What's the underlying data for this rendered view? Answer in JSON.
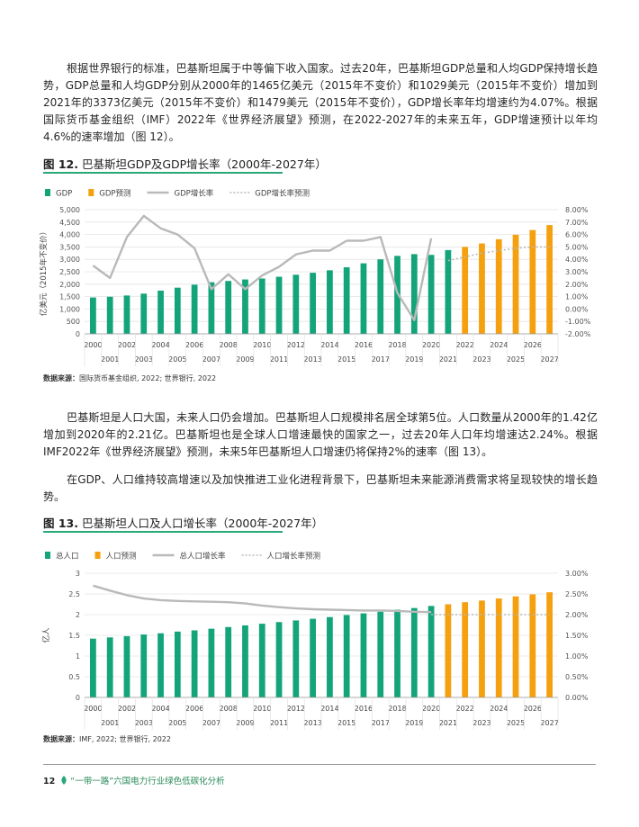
{
  "paragraphs": {
    "p1": "根据世界银行的标准，巴基斯坦属于中等偏下收入国家。过去20年，巴基斯坦GDP总量和人均GDP保持增长趋势，GDP总量和人均GDP分别从2000年的1465亿美元（2015年不变价）和1029美元（2015年不变价）增加到2021年的3373亿美元（2015年不变价）和1479美元（2015年不变价），GDP增长率年均增速约为4.07%。根据国际货币基金组织（IMF）2022年《世界经济展望》预测，在2022-2027年的未来五年，GDP增速预计以年均4.6%的速率增加（图 12）。",
    "p2": "巴基斯坦是人口大国，未来人口仍会增加。巴基斯坦人口规模排名居全球第5位。人口数量从2000年的1.42亿增加到2020年的2.21亿。巴基斯坦也是全球人口增速最快的国家之一，过去20年人口年均增速达2.24%。根据IMF2022年《世界经济展望》预测，未来5年巴基斯坦人口增速仍将保持2%的速率（图 13）。",
    "p3": "在GDP、人口维持较高增速以及加快推进工业化进程背景下，巴基斯坦未来能源消费需求将呈现较快的增长趋势。"
  },
  "fig12": {
    "label": "图 12.",
    "title": "巴基斯坦GDP及GDP增长率（2000年-2027年）",
    "source_label": "数据来源：",
    "source": "国际货币基金组织, 2022; 世界银行, 2022"
  },
  "fig13": {
    "label": "图 13.",
    "title": "巴基斯坦人口及人口增长率（2000年-2027年）",
    "source_label": "数据来源：",
    "source": "IMF, 2022; 世界银行, 2022"
  },
  "footer": {
    "page_number": "12",
    "text": "“一带一路”六国电力行业绿色低碳化分析"
  },
  "colors": {
    "green": "#14a47a",
    "orange": "#f5a00f",
    "gray": "#b9b9b9",
    "accent_rule": "#2aa878"
  },
  "chart_data": [
    {
      "type": "bar",
      "title": "巴基斯坦GDP及GDP增长率（2000年-2027年）",
      "ylabel": "亿美元（2015年不变价）",
      "ylim": [
        0,
        5000
      ],
      "yticks": [
        "0",
        "500",
        "1,000",
        "1,500",
        "2,000",
        "2,500",
        "3,000",
        "3,500",
        "4,000",
        "4,500",
        "5,000"
      ],
      "y2lim": [
        -2,
        8
      ],
      "y2ticks": [
        "-2.00%",
        "-1.00%",
        "0.00%",
        "1.00%",
        "2.00%",
        "3.00%",
        "4.00%",
        "5.00%",
        "6.00%",
        "7.00%",
        "8.00%"
      ],
      "legend": [
        "GDP",
        "GDP预测",
        "GDP增长率",
        "GDP增长率预测"
      ],
      "legend_position": "top-left",
      "categories": [
        2000,
        2001,
        2002,
        2003,
        2004,
        2005,
        2006,
        2007,
        2008,
        2009,
        2010,
        2011,
        2012,
        2013,
        2014,
        2015,
        2016,
        2017,
        2018,
        2019,
        2020,
        2021,
        2022,
        2023,
        2024,
        2025,
        2026,
        2027
      ],
      "series": [
        {
          "name": "GDP",
          "kind": "bar",
          "color": "#14a47a",
          "values": [
            1465,
            1495,
            1545,
            1620,
            1740,
            1860,
            1980,
            2080,
            2130,
            2190,
            2230,
            2300,
            2380,
            2460,
            2560,
            2680,
            2840,
            3000,
            3140,
            3210,
            3180,
            3373,
            null,
            null,
            null,
            null,
            null,
            null
          ]
        },
        {
          "name": "GDP预测",
          "kind": "bar",
          "color": "#f5a00f",
          "values": [
            null,
            null,
            null,
            null,
            null,
            null,
            null,
            null,
            null,
            null,
            null,
            null,
            null,
            null,
            null,
            null,
            null,
            null,
            null,
            null,
            null,
            null,
            3500,
            3640,
            3810,
            3990,
            4180,
            4380
          ]
        },
        {
          "name": "GDP增长率",
          "kind": "line",
          "axis": "right",
          "color": "#b9b9b9",
          "values": [
            3.5,
            2.5,
            5.8,
            7.5,
            6.5,
            6.0,
            4.9,
            1.6,
            2.8,
            1.6,
            2.7,
            3.4,
            4.4,
            4.7,
            4.7,
            5.5,
            5.5,
            5.8,
            1.3,
            -0.9,
            5.7,
            null,
            null,
            null,
            null,
            null,
            null,
            null
          ]
        },
        {
          "name": "GDP增长率预测",
          "kind": "dotted",
          "axis": "right",
          "color": "#b9b9b9",
          "values": [
            null,
            null,
            null,
            null,
            null,
            null,
            null,
            null,
            null,
            null,
            null,
            null,
            null,
            null,
            null,
            null,
            null,
            null,
            null,
            null,
            null,
            3.9,
            4.2,
            4.5,
            4.7,
            4.9,
            5.0,
            5.0
          ]
        }
      ]
    },
    {
      "type": "bar",
      "title": "巴基斯坦人口及人口增长率（2000年-2027年）",
      "ylabel": "亿人",
      "ylim": [
        0,
        3
      ],
      "yticks": [
        "0",
        "0.5",
        "1",
        "1.5",
        "2",
        "2.5",
        "3"
      ],
      "y2lim": [
        0,
        3
      ],
      "y2ticks": [
        "0.00%",
        "0.50%",
        "1.00%",
        "1.50%",
        "2.00%",
        "2.50%",
        "3.00%"
      ],
      "legend": [
        "总人口",
        "人口预测",
        "总人口增长率",
        "人口增长率预测"
      ],
      "legend_position": "top-left",
      "categories": [
        2000,
        2001,
        2002,
        2003,
        2004,
        2005,
        2006,
        2007,
        2008,
        2009,
        2010,
        2011,
        2012,
        2013,
        2014,
        2015,
        2016,
        2017,
        2018,
        2019,
        2020,
        2021,
        2022,
        2023,
        2024,
        2025,
        2026,
        2027
      ],
      "series": [
        {
          "name": "总人口",
          "kind": "bar",
          "color": "#14a47a",
          "values": [
            1.42,
            1.45,
            1.48,
            1.52,
            1.55,
            1.59,
            1.62,
            1.66,
            1.7,
            1.74,
            1.78,
            1.82,
            1.86,
            1.9,
            1.94,
            1.99,
            2.03,
            2.07,
            2.12,
            2.16,
            2.21,
            null,
            null,
            null,
            null,
            null,
            null,
            null
          ]
        },
        {
          "name": "人口预测",
          "kind": "bar",
          "color": "#f5a00f",
          "values": [
            null,
            null,
            null,
            null,
            null,
            null,
            null,
            null,
            null,
            null,
            null,
            null,
            null,
            null,
            null,
            null,
            null,
            null,
            null,
            null,
            null,
            2.25,
            2.3,
            2.34,
            2.39,
            2.44,
            2.49,
            2.54
          ]
        },
        {
          "name": "总人口增长率",
          "kind": "line",
          "axis": "right",
          "color": "#b9b9b9",
          "values": [
            2.7,
            2.58,
            2.47,
            2.39,
            2.35,
            2.33,
            2.32,
            2.31,
            2.3,
            2.27,
            2.22,
            2.18,
            2.15,
            2.13,
            2.12,
            2.11,
            2.1,
            2.1,
            2.09,
            2.07,
            2.06,
            null,
            null,
            null,
            null,
            null,
            null,
            null
          ]
        },
        {
          "name": "人口增长率预测",
          "kind": "dotted",
          "axis": "right",
          "color": "#b9b9b9",
          "values": [
            null,
            null,
            null,
            null,
            null,
            null,
            null,
            null,
            null,
            null,
            null,
            null,
            null,
            null,
            null,
            null,
            null,
            null,
            null,
            null,
            2.0,
            2.0,
            2.0,
            2.0,
            2.0,
            2.0,
            2.0,
            2.0
          ]
        }
      ]
    }
  ]
}
